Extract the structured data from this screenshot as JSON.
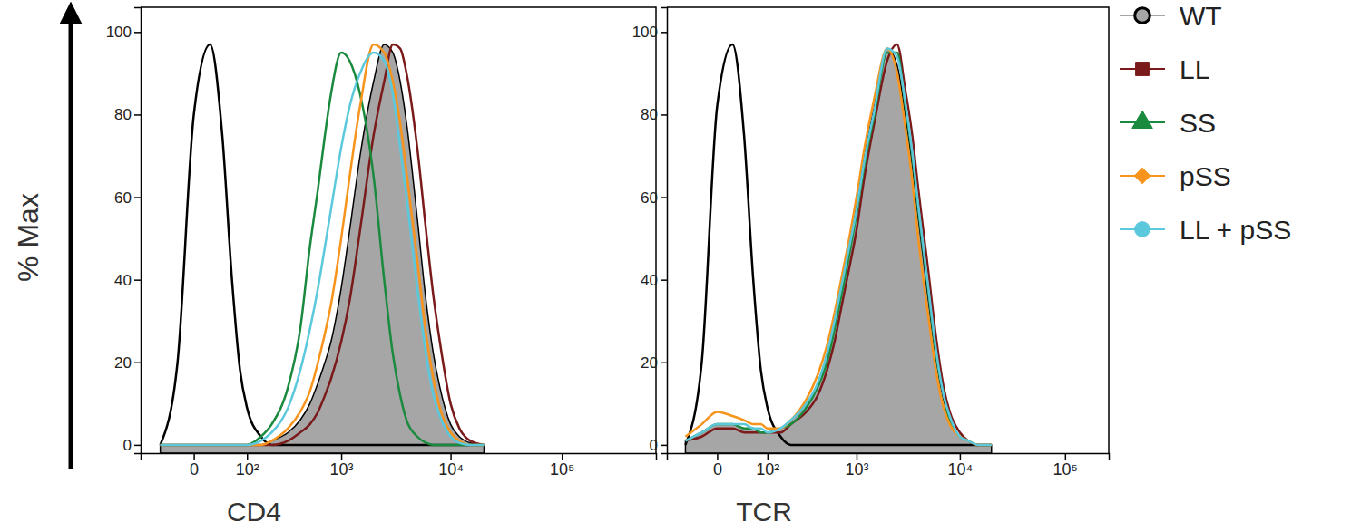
{
  "chart_data": [
    {
      "type": "line",
      "x_label": "CD4",
      "y_label": "% Max",
      "log": "x",
      "xlim": [
        -100,
        700000
      ],
      "ylim": [
        -2,
        106
      ],
      "xticks": [
        0,
        {
          "value": 100,
          "label": "10²"
        },
        {
          "value": 1000,
          "label": "10³"
        },
        {
          "value": 10000,
          "label": "10⁴"
        },
        {
          "value": 100000,
          "label": "10⁵"
        }
      ],
      "yticks": [
        0,
        20,
        40,
        60,
        80,
        100
      ],
      "x": [
        -50,
        -20,
        0,
        20,
        40,
        60,
        80,
        100,
        150,
        200,
        300,
        400,
        500,
        600,
        700,
        800,
        1000,
        1200,
        1500,
        2000,
        2500,
        3000,
        3500,
        4000,
        5000,
        6000,
        7000,
        8000,
        10000,
        12000,
        15000,
        20000
      ],
      "series": [
        {
          "color": "#000000",
          "type": "line",
          "values": [
            0,
            20,
            80,
            97,
            75,
            40,
            18,
            9,
            2,
            0,
            0,
            0,
            0,
            0,
            0,
            0,
            0,
            0,
            0,
            0,
            0,
            0,
            0,
            0,
            0,
            0,
            0,
            0,
            0,
            0,
            0,
            0
          ]
        },
        {
          "name": "WT",
          "color": "#a6a6a6",
          "type": "area",
          "marker": "circle",
          "values": [
            0,
            0,
            0,
            0,
            0,
            0,
            0,
            0,
            0,
            1,
            3,
            6,
            10,
            15,
            20,
            25,
            38,
            52,
            70,
            88,
            97,
            95,
            88,
            78,
            55,
            35,
            22,
            14,
            5,
            2,
            0.5,
            0
          ]
        },
        {
          "name": "LL",
          "color": "#7b1a1a",
          "type": "line",
          "marker": "square",
          "values": [
            0,
            0,
            0,
            0,
            0,
            0,
            0,
            0,
            0,
            0,
            1,
            3,
            5,
            8,
            12,
            16,
            25,
            35,
            52,
            75,
            88,
            97,
            96,
            90,
            72,
            52,
            36,
            25,
            10,
            4,
            1,
            0
          ]
        },
        {
          "name": "SS",
          "color": "#1a8a3e",
          "type": "line",
          "marker": "triangle",
          "values": [
            0,
            0,
            0,
            0,
            0,
            0,
            0,
            0,
            2,
            5,
            14,
            28,
            48,
            62,
            75,
            85,
            95,
            93,
            85,
            65,
            40,
            22,
            12,
            6,
            2,
            0.5,
            0,
            0,
            0,
            0,
            0,
            0
          ]
        },
        {
          "name": "pSS",
          "color": "#f7941d",
          "type": "line",
          "marker": "diamond",
          "values": [
            0,
            0,
            0,
            0,
            0,
            0,
            0,
            0,
            0,
            1,
            4,
            8,
            13,
            20,
            27,
            34,
            50,
            65,
            82,
            97,
            95,
            88,
            78,
            66,
            45,
            27,
            16,
            9,
            3,
            1,
            0,
            0
          ]
        },
        {
          "name": "LL + pSS",
          "color": "#5bc8dc",
          "type": "line",
          "marker": "circle",
          "values": [
            0,
            0,
            0,
            0,
            0,
            0,
            0,
            0,
            1,
            3,
            9,
            18,
            28,
            38,
            48,
            57,
            72,
            82,
            90,
            95,
            93,
            85,
            72,
            60,
            38,
            22,
            12,
            7,
            2,
            0.5,
            0,
            0
          ]
        }
      ]
    },
    {
      "type": "line",
      "x_label": "TCR",
      "log": "x",
      "legend": "right",
      "xlim": [
        -100,
        260000
      ],
      "ylim": [
        -2,
        106
      ],
      "xticks": [
        0,
        {
          "value": 100,
          "label": "10²"
        },
        {
          "value": 1000,
          "label": "10³"
        },
        {
          "value": 10000,
          "label": "10⁴"
        },
        {
          "value": 100000,
          "label": "10⁵"
        }
      ],
      "yticks": [
        0,
        20,
        40,
        60,
        80,
        100
      ],
      "x": [
        -50,
        -20,
        0,
        20,
        40,
        60,
        80,
        100,
        150,
        200,
        300,
        400,
        500,
        600,
        700,
        800,
        1000,
        1200,
        1500,
        2000,
        2500,
        3000,
        3500,
        4000,
        5000,
        6000,
        7000,
        8000,
        10000,
        12000,
        15000,
        20000
      ],
      "series": [
        {
          "color": "#000000",
          "type": "line",
          "values": [
            0,
            20,
            82,
            97,
            75,
            40,
            18,
            9,
            2,
            0,
            0,
            0,
            0,
            0,
            0,
            0,
            0,
            0,
            0,
            0,
            0,
            0,
            0,
            0,
            0,
            0,
            0,
            0,
            0,
            0,
            0,
            0
          ]
        },
        {
          "name": "WT",
          "color": "#a6a6a6",
          "type": "area",
          "marker": "circle",
          "values": [
            1,
            3,
            5,
            5,
            4,
            4,
            3,
            3,
            4,
            6,
            10,
            15,
            22,
            30,
            38,
            45,
            58,
            70,
            82,
            96,
            92,
            80,
            68,
            55,
            35,
            20,
            11,
            6,
            2,
            1,
            0,
            0
          ]
        },
        {
          "name": "LL",
          "color": "#7b1a1a",
          "type": "line",
          "marker": "square",
          "values": [
            1,
            2,
            4,
            4,
            3,
            3,
            3,
            3,
            3,
            5,
            8,
            12,
            18,
            25,
            33,
            40,
            52,
            65,
            78,
            93,
            97,
            86,
            75,
            62,
            42,
            25,
            14,
            8,
            3,
            1,
            0,
            0
          ]
        },
        {
          "name": "SS",
          "color": "#1a8a3e",
          "type": "line",
          "marker": "triangle",
          "values": [
            1,
            3,
            5,
            5,
            4,
            4,
            3,
            3,
            4,
            5,
            9,
            14,
            20,
            28,
            36,
            43,
            56,
            68,
            80,
            95,
            95,
            82,
            70,
            57,
            37,
            21,
            12,
            6,
            2,
            1,
            0,
            0
          ]
        },
        {
          "name": "pSS",
          "color": "#f7941d",
          "type": "line",
          "marker": "diamond",
          "values": [
            2,
            5,
            8,
            7,
            6,
            5,
            5,
            4,
            4,
            6,
            11,
            17,
            24,
            32,
            40,
            47,
            60,
            72,
            84,
            96,
            90,
            77,
            64,
            50,
            31,
            17,
            9,
            5,
            2,
            1,
            0,
            0
          ]
        },
        {
          "name": "LL + pSS",
          "color": "#5bc8dc",
          "type": "line",
          "marker": "circle",
          "values": [
            1,
            3,
            5,
            5,
            5,
            4,
            4,
            3,
            4,
            6,
            10,
            15,
            22,
            30,
            38,
            45,
            57,
            69,
            81,
            96,
            94,
            83,
            71,
            58,
            38,
            22,
            12,
            7,
            2,
            1,
            0,
            0
          ]
        }
      ]
    }
  ]
}
